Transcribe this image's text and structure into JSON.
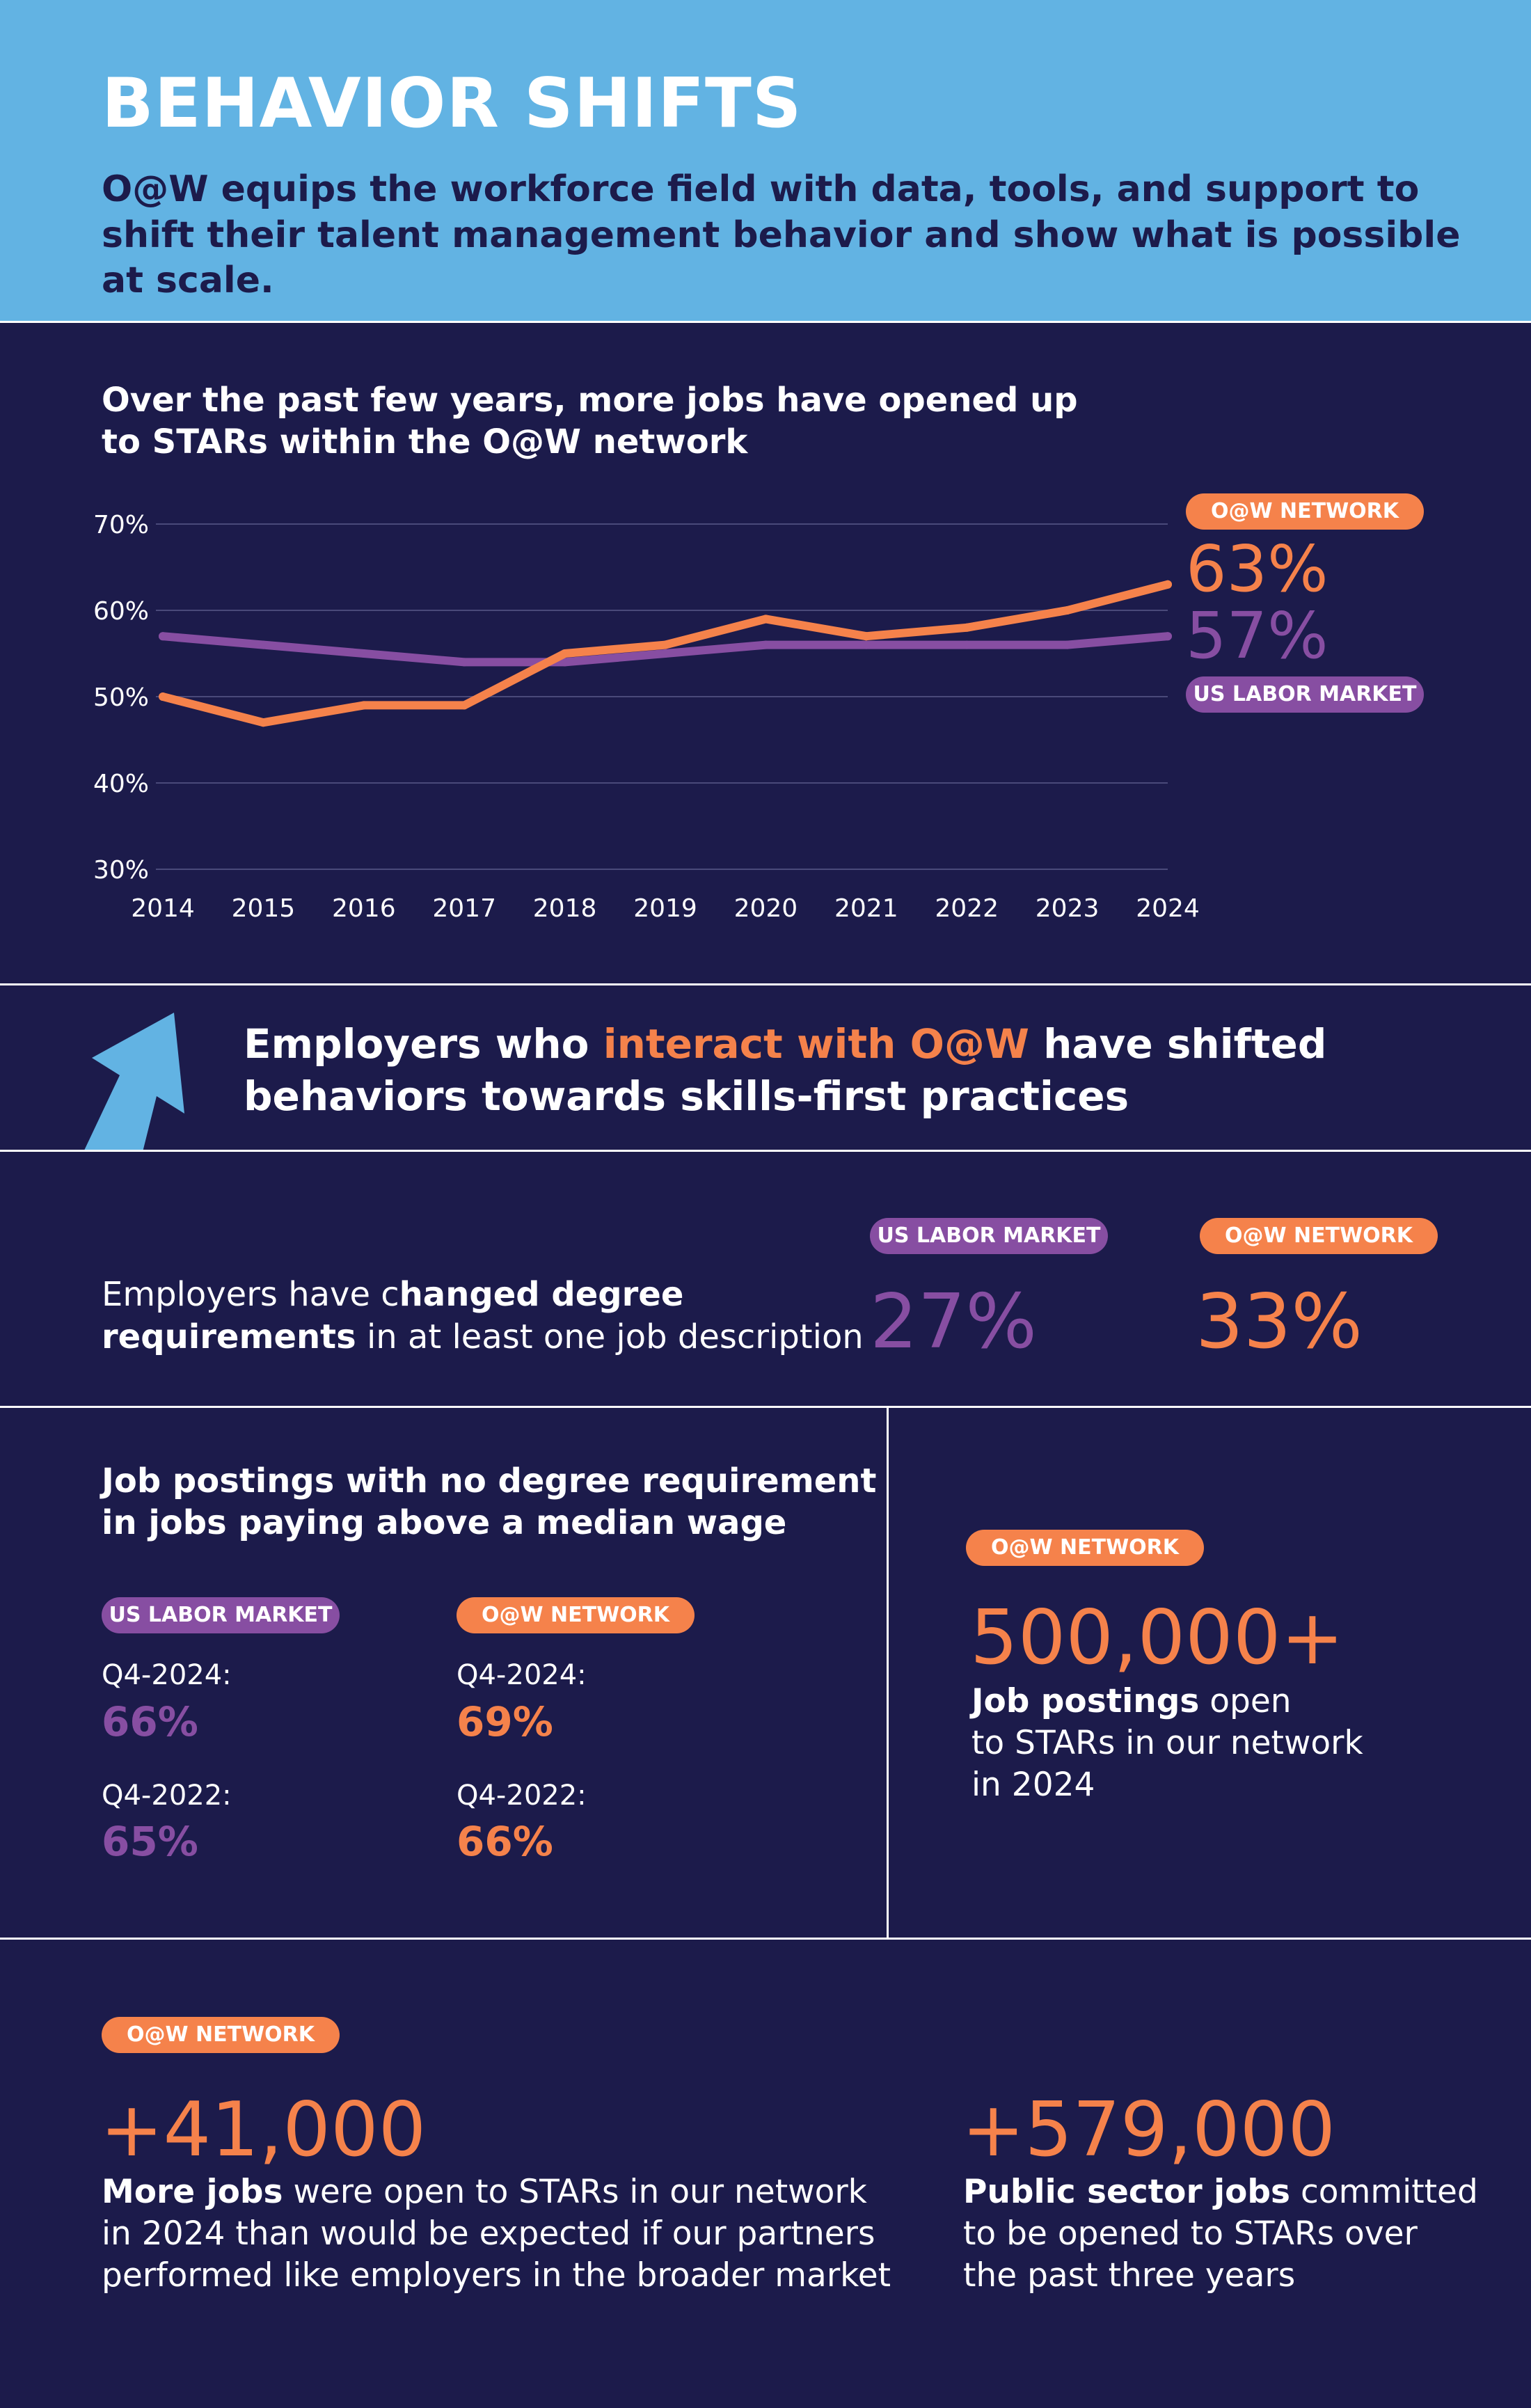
{
  "header": {
    "title": "BEHAVIOR SHIFTS",
    "subtitle": "O@W equips the workforce field with data, tools, and support to shift their talent management behavior and show what is possible at scale."
  },
  "colors": {
    "orange": "#f5824b",
    "purple": "#874ea2",
    "navy": "#1c1b4b",
    "sky": "#62b3e3"
  },
  "chart_section": {
    "title_line1": "Over the past few years, more jobs have opened up",
    "title_line2": "to STARs within the O@W network",
    "oaw_pill": "O@W NETWORK",
    "us_pill": "US LABOR MARKET",
    "oaw_end_value": "63%",
    "us_end_value": "57%"
  },
  "chart_data": {
    "type": "line",
    "title": "Over the past few years, more jobs have opened up to STARs within the O@W network",
    "x": [
      "2014",
      "2015",
      "2016",
      "2017",
      "2018",
      "2019",
      "2020",
      "2021",
      "2022",
      "2023",
      "2024"
    ],
    "series": [
      {
        "name": "O@W NETWORK",
        "color": "#f5824b",
        "values": [
          50,
          47,
          49,
          49,
          55,
          56,
          59,
          57,
          58,
          60,
          63
        ]
      },
      {
        "name": "US LABOR MARKET",
        "color": "#874ea2",
        "values": [
          57,
          56,
          55,
          54,
          54,
          55,
          56,
          56,
          56,
          56,
          57
        ]
      }
    ],
    "yticks": [
      "30%",
      "40%",
      "50%",
      "60%",
      "70%"
    ],
    "ylim": [
      30,
      70
    ],
    "xlabel": "",
    "ylabel": "",
    "grid": true,
    "legend": "right"
  },
  "employers": {
    "text_white": "Employers who ",
    "text_orange": "interact with O@W",
    "text_white2": " have shifted",
    "text_line2": "behaviors towards skills-first practices",
    "arrow_icon": "up-arrow-icon"
  },
  "degree_req": {
    "text_a": "Employers have c",
    "text_b": "hanged degree",
    "text_c": "requirements",
    "text_d": " in at least one job description",
    "us_pill": "US LABOR MARKET",
    "oaw_pill": "O@W NETWORK",
    "us_value": "27%",
    "oaw_value": "33%"
  },
  "postings": {
    "title_line1": "Job postings with no degree requirement",
    "title_line2": "in jobs paying above a median wage",
    "us_pill": "US LABOR MARKET",
    "oaw_pill": "O@W NETWORK",
    "us": [
      {
        "label": "Q4-2024:",
        "value": "66%"
      },
      {
        "label": "Q4-2022:",
        "value": "65%"
      }
    ],
    "oaw": [
      {
        "label": "Q4-2024:",
        "value": "69%"
      },
      {
        "label": "Q4-2022:",
        "value": "66%"
      }
    ]
  },
  "job_postings_stat": {
    "pill": "O@W NETWORK",
    "value": "500,000+",
    "bold": "Job postings",
    "rest1": " open",
    "line2": "to STARs in our network",
    "line3": "in 2024"
  },
  "bottom": {
    "pill": "O@W NETWORK",
    "left_value": "+41,000",
    "left_bold": "More jobs",
    "left_rest1": " were open to STARs in our network",
    "left_line2": "in 2024 than would be expected if our partners",
    "left_line3": "performed like employers in the broader market",
    "right_value": "+579,000",
    "right_bold": "Public sector jobs",
    "right_rest1": " committed",
    "right_line2": "to be opened to STARs over",
    "right_line3": "the past three years"
  }
}
